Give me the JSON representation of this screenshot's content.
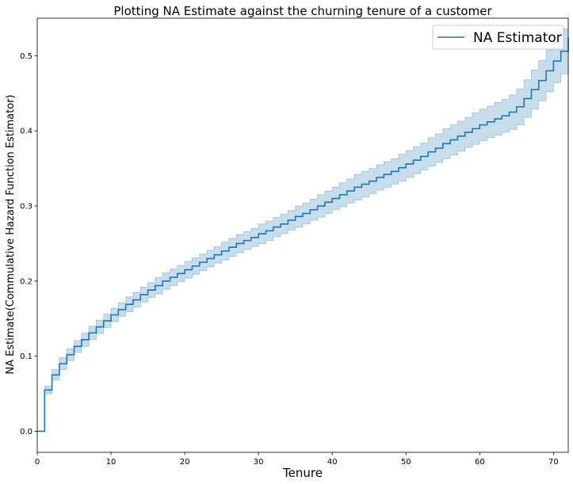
{
  "chart_data": {
    "type": "line",
    "title": "Plotting NA Estimate against the churning tenure of a customer",
    "xlabel": "Tenure",
    "ylabel": "NA Estimate(Commulative Hazard Function Estimator)",
    "xlim": [
      0,
      72
    ],
    "ylim": [
      -0.028,
      0.55
    ],
    "xticks": [
      0,
      10,
      20,
      30,
      40,
      50,
      60,
      70
    ],
    "xtick_labels": [
      "0",
      "10",
      "20",
      "30",
      "40",
      "50",
      "60",
      "70"
    ],
    "yticks": [
      0.0,
      0.1,
      0.2,
      0.3,
      0.4,
      0.5
    ],
    "ytick_labels": [
      "0.0",
      "0.1",
      "0.2",
      "0.3",
      "0.4",
      "0.5"
    ],
    "grid": false,
    "legend": {
      "position": "top-right",
      "entries": [
        "NA Estimator"
      ]
    },
    "colors": {
      "line": "#1f77b4",
      "band": "#1f77b4"
    },
    "series": [
      {
        "name": "NA Estimator",
        "step": "post",
        "x": [
          0,
          1,
          2,
          3,
          4,
          5,
          6,
          7,
          8,
          9,
          10,
          11,
          12,
          13,
          14,
          15,
          16,
          17,
          18,
          19,
          20,
          21,
          22,
          23,
          24,
          25,
          26,
          27,
          28,
          29,
          30,
          31,
          32,
          33,
          34,
          35,
          36,
          37,
          38,
          39,
          40,
          41,
          42,
          43,
          44,
          45,
          46,
          47,
          48,
          49,
          50,
          51,
          52,
          53,
          54,
          55,
          56,
          57,
          58,
          59,
          60,
          61,
          62,
          63,
          64,
          65,
          66,
          67,
          68,
          69,
          70,
          71,
          72
        ],
        "values": [
          0.0,
          0.055,
          0.075,
          0.09,
          0.102,
          0.113,
          0.122,
          0.131,
          0.139,
          0.147,
          0.155,
          0.162,
          0.169,
          0.175,
          0.182,
          0.188,
          0.194,
          0.2,
          0.205,
          0.21,
          0.215,
          0.22,
          0.225,
          0.23,
          0.235,
          0.24,
          0.245,
          0.25,
          0.254,
          0.258,
          0.263,
          0.267,
          0.272,
          0.276,
          0.281,
          0.286,
          0.29,
          0.295,
          0.3,
          0.305,
          0.31,
          0.315,
          0.32,
          0.325,
          0.329,
          0.333,
          0.338,
          0.342,
          0.346,
          0.351,
          0.356,
          0.361,
          0.366,
          0.372,
          0.377,
          0.383,
          0.388,
          0.393,
          0.398,
          0.403,
          0.408,
          0.412,
          0.416,
          0.42,
          0.425,
          0.432,
          0.443,
          0.455,
          0.467,
          0.48,
          0.493,
          0.506,
          0.524
        ],
        "ci_lower": [
          0.0,
          0.05,
          0.068,
          0.082,
          0.094,
          0.105,
          0.113,
          0.122,
          0.13,
          0.138,
          0.146,
          0.153,
          0.159,
          0.165,
          0.172,
          0.178,
          0.183,
          0.189,
          0.194,
          0.199,
          0.204,
          0.209,
          0.214,
          0.219,
          0.224,
          0.228,
          0.233,
          0.238,
          0.242,
          0.246,
          0.25,
          0.254,
          0.259,
          0.263,
          0.268,
          0.272,
          0.276,
          0.281,
          0.285,
          0.29,
          0.295,
          0.299,
          0.304,
          0.308,
          0.312,
          0.316,
          0.321,
          0.325,
          0.329,
          0.333,
          0.338,
          0.343,
          0.348,
          0.353,
          0.358,
          0.363,
          0.368,
          0.373,
          0.378,
          0.382,
          0.387,
          0.391,
          0.394,
          0.398,
          0.402,
          0.408,
          0.418,
          0.429,
          0.44,
          0.452,
          0.464,
          0.476,
          0.493
        ],
        "ci_upper": [
          0.0,
          0.06,
          0.082,
          0.098,
          0.11,
          0.121,
          0.131,
          0.14,
          0.148,
          0.156,
          0.164,
          0.171,
          0.179,
          0.185,
          0.192,
          0.198,
          0.205,
          0.211,
          0.216,
          0.221,
          0.226,
          0.231,
          0.236,
          0.241,
          0.246,
          0.252,
          0.257,
          0.262,
          0.266,
          0.27,
          0.276,
          0.28,
          0.285,
          0.289,
          0.294,
          0.3,
          0.304,
          0.309,
          0.315,
          0.32,
          0.325,
          0.331,
          0.336,
          0.342,
          0.346,
          0.35,
          0.355,
          0.359,
          0.363,
          0.369,
          0.374,
          0.379,
          0.384,
          0.391,
          0.396,
          0.403,
          0.408,
          0.413,
          0.418,
          0.424,
          0.429,
          0.433,
          0.438,
          0.442,
          0.448,
          0.456,
          0.468,
          0.481,
          0.494,
          0.508,
          0.522,
          0.536,
          0.555
        ]
      }
    ]
  }
}
